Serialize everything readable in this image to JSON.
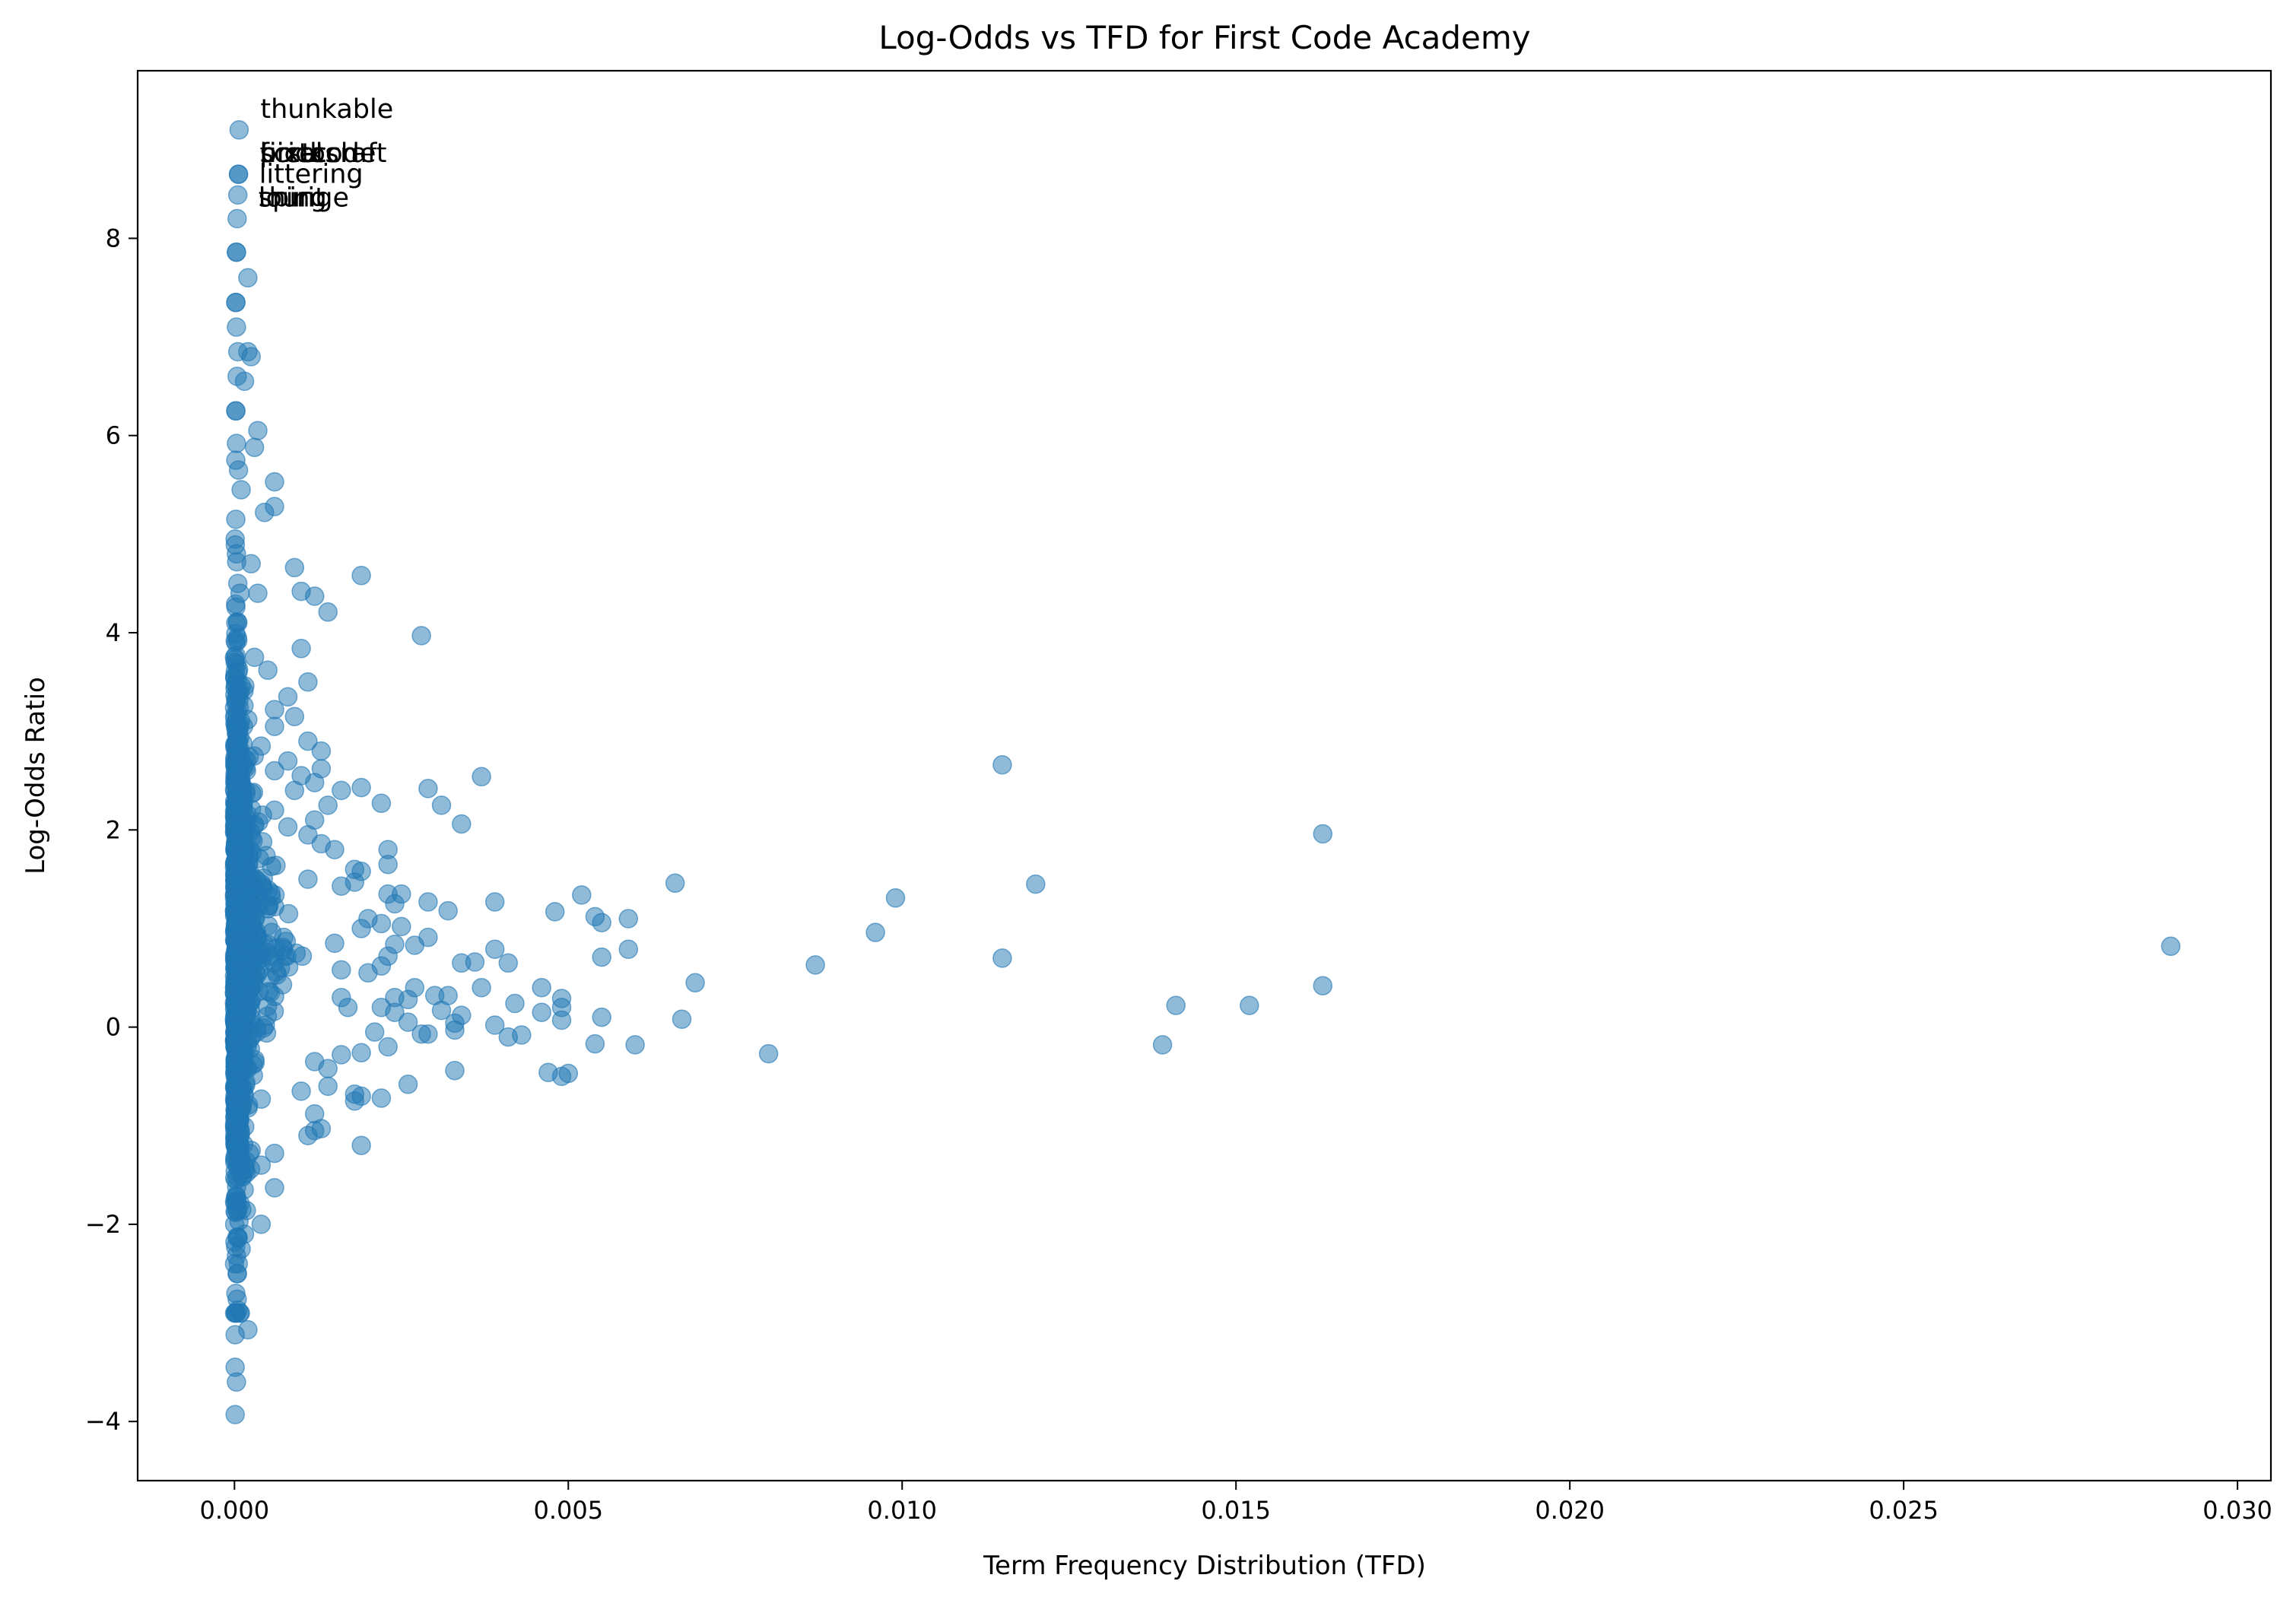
{
  "chart_data": {
    "type": "scatter",
    "title": "Log-Odds vs TFD for First Code Academy",
    "xlabel": "Term Frequency Distribution (TFD)",
    "ylabel": "Log-Odds Ratio",
    "xlim": [
      -0.00145,
      0.0305
    ],
    "ylim": [
      -4.6,
      9.7
    ],
    "xticks": [
      0.0,
      0.005,
      0.01,
      0.015,
      0.02,
      0.025,
      0.03
    ],
    "xtick_labels": [
      "0.000",
      "0.005",
      "0.010",
      "0.015",
      "0.020",
      "0.025",
      "0.030"
    ],
    "yticks": [
      -4,
      -2,
      0,
      2,
      4,
      6,
      8
    ],
    "ytick_labels": [
      "−4",
      "−2",
      "0",
      "2",
      "4",
      "6",
      "8"
    ],
    "grid": false,
    "legend": "none",
    "marker_color": "#1f77b4",
    "marker_alpha": 0.5,
    "annotations": [
      {
        "text": "thunkable",
        "x": 7e-05,
        "y": 9.1
      },
      {
        "text": "scratch",
        "x": 6e-05,
        "y": 8.65
      },
      {
        "text": "pictocraft",
        "x": 6e-05,
        "y": 8.65
      },
      {
        "text": "firstcode",
        "x": 6e-05,
        "y": 8.65
      },
      {
        "text": "bricks",
        "x": 6e-05,
        "y": 8.65
      },
      {
        "text": "pixel",
        "x": 6e-05,
        "y": 8.65
      },
      {
        "text": "littering",
        "x": 5e-05,
        "y": 8.44
      },
      {
        "text": "spirit",
        "x": 4e-05,
        "y": 8.2
      },
      {
        "text": "lounge",
        "x": 4e-05,
        "y": 8.2
      },
      {
        "text": "thing",
        "x": 4e-05,
        "y": 8.2
      }
    ],
    "points": [
      [
        7e-05,
        9.1
      ],
      [
        6e-05,
        8.65
      ],
      [
        6e-05,
        8.65
      ],
      [
        5e-05,
        8.44
      ],
      [
        4e-05,
        8.2
      ],
      [
        3e-05,
        7.86
      ],
      [
        3e-05,
        7.86
      ],
      [
        0.0002,
        7.6
      ],
      [
        2e-05,
        7.35
      ],
      [
        2e-05,
        7.35
      ],
      [
        3e-05,
        7.1
      ],
      [
        5e-05,
        6.85
      ],
      [
        0.0002,
        6.85
      ],
      [
        0.00025,
        6.8
      ],
      [
        4e-05,
        6.6
      ],
      [
        0.00015,
        6.55
      ],
      [
        2e-05,
        6.25
      ],
      [
        2e-05,
        6.25
      ],
      [
        0.00035,
        6.05
      ],
      [
        3e-05,
        5.92
      ],
      [
        0.0003,
        5.88
      ],
      [
        2e-05,
        5.75
      ],
      [
        6e-05,
        5.65
      ],
      [
        0.0006,
        5.53
      ],
      [
        0.0001,
        5.45
      ],
      [
        0.0006,
        5.28
      ],
      [
        0.00045,
        5.22
      ],
      [
        2e-05,
        5.15
      ],
      [
        1e-05,
        4.95
      ],
      [
        3e-05,
        4.8
      ],
      [
        0.00025,
        4.7
      ],
      [
        0.0009,
        4.66
      ],
      [
        0.0019,
        4.58
      ],
      [
        5e-05,
        4.5
      ],
      [
        0.00035,
        4.4
      ],
      [
        0.001,
        4.42
      ],
      [
        0.0012,
        4.37
      ],
      [
        0.0014,
        4.21
      ],
      [
        2e-05,
        4.1
      ],
      [
        0.0028,
        3.97
      ],
      [
        2e-05,
        3.9
      ],
      [
        0.001,
        3.84
      ],
      [
        0.0003,
        3.75
      ],
      [
        0.0005,
        3.62
      ],
      [
        0.0011,
        3.5
      ],
      [
        5e-05,
        3.4
      ],
      [
        0.0008,
        3.35
      ],
      [
        0.0006,
        3.22
      ],
      [
        0.0009,
        3.15
      ],
      [
        0.0006,
        3.05
      ],
      [
        0.0011,
        2.9
      ],
      [
        0.0004,
        2.85
      ],
      [
        0.0013,
        2.8
      ],
      [
        0.0008,
        2.7
      ],
      [
        0.0006,
        2.6
      ],
      [
        0.001,
        2.55
      ],
      [
        0.0013,
        2.62
      ],
      [
        0.0037,
        2.54
      ],
      [
        0.0029,
        2.42
      ],
      [
        0.0019,
        2.43
      ],
      [
        0.0016,
        2.4
      ],
      [
        0.0012,
        2.48
      ],
      [
        0.0009,
        2.4
      ],
      [
        0.0115,
        2.66
      ],
      [
        0.0022,
        2.27
      ],
      [
        0.0031,
        2.25
      ],
      [
        0.0014,
        2.25
      ],
      [
        0.0006,
        2.2
      ],
      [
        0.0012,
        2.1
      ],
      [
        0.0034,
        2.06
      ],
      [
        0.0008,
        2.03
      ],
      [
        0.0011,
        1.95
      ],
      [
        0.0163,
        1.96
      ],
      [
        0.0013,
        1.86
      ],
      [
        0.0015,
        1.8
      ],
      [
        0.0023,
        1.8
      ],
      [
        0.0023,
        1.65
      ],
      [
        0.0018,
        1.6
      ],
      [
        0.0019,
        1.58
      ],
      [
        0.0018,
        1.47
      ],
      [
        0.0016,
        1.43
      ],
      [
        0.0066,
        1.46
      ],
      [
        0.012,
        1.45
      ],
      [
        0.0011,
        1.5
      ],
      [
        0.0023,
        1.35
      ],
      [
        0.0025,
        1.35
      ],
      [
        0.0029,
        1.27
      ],
      [
        0.0039,
        1.27
      ],
      [
        0.0052,
        1.34
      ],
      [
        0.0099,
        1.31
      ],
      [
        0.0024,
        1.25
      ],
      [
        0.0032,
        1.18
      ],
      [
        0.0048,
        1.17
      ],
      [
        0.0054,
        1.12
      ],
      [
        0.0059,
        1.1
      ],
      [
        0.0055,
        1.06
      ],
      [
        0.002,
        1.1
      ],
      [
        0.0019,
        1.0
      ],
      [
        0.0022,
        1.05
      ],
      [
        0.0025,
        1.02
      ],
      [
        0.0029,
        0.91
      ],
      [
        0.0096,
        0.96
      ],
      [
        0.0015,
        0.85
      ],
      [
        0.0024,
        0.84
      ],
      [
        0.0027,
        0.83
      ],
      [
        0.0039,
        0.79
      ],
      [
        0.0059,
        0.79
      ],
      [
        0.0023,
        0.72
      ],
      [
        0.0034,
        0.65
      ],
      [
        0.0036,
        0.66
      ],
      [
        0.0041,
        0.65
      ],
      [
        0.0055,
        0.71
      ],
      [
        0.0087,
        0.63
      ],
      [
        0.0115,
        0.7
      ],
      [
        0.029,
        0.82
      ],
      [
        0.0022,
        0.62
      ],
      [
        0.0016,
        0.58
      ],
      [
        0.002,
        0.55
      ],
      [
        0.0069,
        0.45
      ],
      [
        0.0163,
        0.42
      ],
      [
        0.0027,
        0.4
      ],
      [
        0.0037,
        0.4
      ],
      [
        0.0046,
        0.4
      ],
      [
        0.0016,
        0.3
      ],
      [
        0.0024,
        0.3
      ],
      [
        0.0026,
        0.28
      ],
      [
        0.003,
        0.32
      ],
      [
        0.0032,
        0.32
      ],
      [
        0.0049,
        0.29
      ],
      [
        0.0042,
        0.24
      ],
      [
        0.0141,
        0.22
      ],
      [
        0.0152,
        0.22
      ],
      [
        0.0017,
        0.2
      ],
      [
        0.0022,
        0.2
      ],
      [
        0.0024,
        0.15
      ],
      [
        0.0031,
        0.17
      ],
      [
        0.0034,
        0.12
      ],
      [
        0.0046,
        0.15
      ],
      [
        0.0049,
        0.2
      ],
      [
        0.0055,
        0.1
      ],
      [
        0.0067,
        0.08
      ],
      [
        0.0026,
        0.05
      ],
      [
        0.0033,
        0.04
      ],
      [
        0.0039,
        0.02
      ],
      [
        0.0049,
        0.07
      ],
      [
        0.0021,
        -0.05
      ],
      [
        0.0028,
        -0.07
      ],
      [
        0.0029,
        -0.07
      ],
      [
        0.0033,
        -0.03
      ],
      [
        0.0041,
        -0.1
      ],
      [
        0.0043,
        -0.08
      ],
      [
        0.0139,
        -0.18
      ],
      [
        0.006,
        -0.18
      ],
      [
        0.0054,
        -0.17
      ],
      [
        0.0023,
        -0.2
      ],
      [
        0.0019,
        -0.26
      ],
      [
        0.008,
        -0.27
      ],
      [
        0.0016,
        -0.28
      ],
      [
        0.0012,
        -0.35
      ],
      [
        0.0014,
        -0.42
      ],
      [
        0.0033,
        -0.44
      ],
      [
        0.0047,
        -0.46
      ],
      [
        0.0049,
        -0.5
      ],
      [
        0.005,
        -0.47
      ],
      [
        0.0026,
        -0.58
      ],
      [
        0.0014,
        -0.6
      ],
      [
        0.001,
        -0.65
      ],
      [
        0.0018,
        -0.68
      ],
      [
        0.0022,
        -0.72
      ],
      [
        0.0019,
        -0.7
      ],
      [
        0.0018,
        -0.75
      ],
      [
        0.0012,
        -0.88
      ],
      [
        0.0013,
        -1.03
      ],
      [
        0.0012,
        -1.05
      ],
      [
        0.0011,
        -1.1
      ],
      [
        0.0019,
        -1.2
      ],
      [
        0.0006,
        -1.28
      ],
      [
        0.0004,
        -1.4
      ],
      [
        0.0006,
        -1.63
      ],
      [
        0.0004,
        -2.0
      ],
      [
        0.00015,
        -2.1
      ],
      [
        0.0001,
        -2.25
      ],
      [
        4e-05,
        -2.5
      ],
      [
        2e-05,
        -2.7
      ],
      [
        5e-05,
        -2.87
      ],
      [
        0.0002,
        -3.07
      ],
      [
        1e-05,
        -3.12
      ],
      [
        1e-05,
        -3.45
      ],
      [
        3e-05,
        -3.6
      ],
      [
        1e-05,
        -3.93
      ]
    ]
  }
}
